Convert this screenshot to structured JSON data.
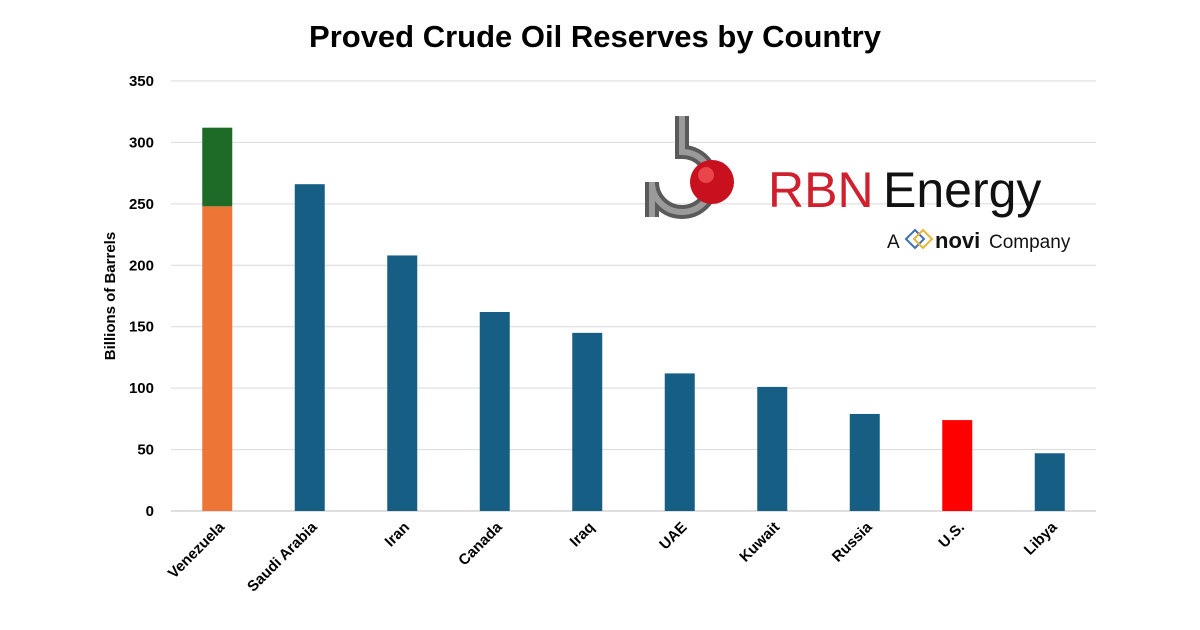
{
  "chart_data": {
    "type": "bar",
    "title": "Proved Crude Oil Reserves by Country",
    "ylabel": "Billions of Barrels",
    "xlabel": "",
    "ylim": [
      0,
      350
    ],
    "yticks": [
      0,
      50,
      100,
      150,
      200,
      250,
      300,
      350
    ],
    "grid": true,
    "stacked": true,
    "categories": [
      "Venezuela",
      "Saudi Arabia",
      "Iran",
      "Canada",
      "Iraq",
      "UAE",
      "Kuwait",
      "Russia",
      "U.S.",
      "Libya"
    ],
    "values": [
      312,
      266,
      208,
      162,
      145,
      112,
      101,
      79,
      74,
      47
    ],
    "bar_segments": [
      [
        {
          "value": 248,
          "color": "#ed7535"
        },
        {
          "value": 64,
          "color": "#1d6b27"
        }
      ],
      [
        {
          "value": 266,
          "color": "#165e83"
        }
      ],
      [
        {
          "value": 208,
          "color": "#165e83"
        }
      ],
      [
        {
          "value": 162,
          "color": "#165e83"
        }
      ],
      [
        {
          "value": 145,
          "color": "#165e83"
        }
      ],
      [
        {
          "value": 112,
          "color": "#165e83"
        }
      ],
      [
        {
          "value": 101,
          "color": "#165e83"
        }
      ],
      [
        {
          "value": 79,
          "color": "#165e83"
        }
      ],
      [
        {
          "value": 74,
          "color": "#ff0000"
        }
      ],
      [
        {
          "value": 47,
          "color": "#165e83"
        }
      ]
    ]
  },
  "logo": {
    "brand_red": "RBN",
    "brand_dark": "Energy",
    "tagline_prefix": "A",
    "tagline_brand": "novi",
    "tagline_suffix": "Company",
    "icon": "rbn-pipe-drop-logo"
  },
  "colors": {
    "venezuela_base": "#ed7535",
    "venezuela_top": "#1d6b27",
    "default_bar": "#165e83",
    "us_bar": "#ff0000",
    "grid": "#d9d9d9"
  }
}
